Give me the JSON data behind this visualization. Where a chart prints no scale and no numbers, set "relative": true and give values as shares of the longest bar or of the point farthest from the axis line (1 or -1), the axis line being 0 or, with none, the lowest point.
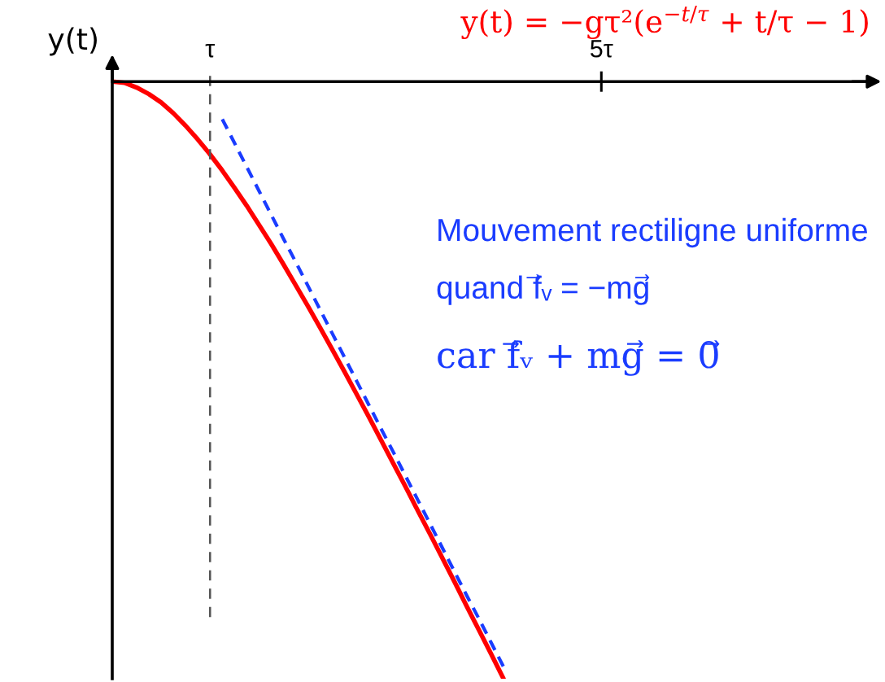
{
  "chart_data": {
    "type": "line",
    "title": "y(t) = −gτ²(e$^{−t/τ}$ + t/τ − 1)",
    "ylabel": "y(t)",
    "relative": true,
    "tick_labels": "x",
    "categories": [
      null,
      null,
      null,
      null,
      null,
      null,
      null,
      null,
      "τ",
      null,
      null,
      null,
      null,
      null,
      null,
      null,
      null,
      null,
      null,
      null,
      null,
      null,
      null,
      null,
      null,
      null,
      null,
      null,
      null,
      null,
      null,
      null,
      null,
      null,
      null,
      null,
      null,
      null,
      null,
      null,
      "5τ",
      null,
      null,
      null,
      null,
      null,
      null,
      null,
      null,
      null,
      null,
      null,
      null,
      null,
      null,
      null,
      null,
      null,
      null,
      null,
      null,
      null,
      null
    ],
    "series": [
      {
        "color": "#ff0000",
        "line_style": "solid",
        "values": [
          0,
          -0.002,
          -0.01,
          -0.021,
          -0.035,
          -0.053,
          -0.074,
          -0.097,
          -0.122,
          -0.149,
          -0.178,
          -0.208,
          -0.24,
          -0.272,
          -0.306,
          -0.341,
          -0.376,
          -0.412,
          -0.449,
          -0.486,
          -0.524,
          -0.562,
          -0.601,
          -0.64,
          -0.679,
          -0.719,
          -0.758,
          -0.798,
          -0.838,
          -0.879,
          -0.919,
          -0.959,
          -1,
          null,
          null,
          null,
          null,
          null,
          null,
          null,
          null,
          null,
          null,
          null,
          null,
          null,
          null,
          null,
          null,
          null,
          null,
          null,
          null,
          null,
          null,
          null,
          null,
          null,
          null,
          null,
          null,
          null,
          null
        ]
      },
      {
        "color": "#1a3cff",
        "line_style": "dashed",
        "values": [
          null,
          null,
          null,
          null,
          null,
          null,
          null,
          null,
          null,
          -0.063,
          -0.103,
          -0.143,
          -0.183,
          -0.223,
          -0.263,
          -0.302,
          -0.342,
          -0.382,
          -0.422,
          -0.462,
          -0.502,
          -0.542,
          -0.582,
          -0.621,
          -0.661,
          -0.701,
          -0.741,
          -0.781,
          -0.821,
          -0.861,
          -0.9,
          -0.94,
          -0.98,
          null,
          null,
          null,
          null,
          null,
          null,
          null,
          null,
          null,
          null,
          null,
          null,
          null,
          null,
          null,
          null,
          null,
          null,
          null,
          null,
          null,
          null,
          null,
          null,
          null,
          null,
          null,
          null,
          null,
          null
        ]
      }
    ],
    "ref_lines": [
      {
        "axis": "x",
        "value": "τ",
        "color": "#555555",
        "line_style": "dashed"
      }
    ],
    "annotations": [
      "Mouvement rectiligne uniforme",
      "quand f⃗ᵥ = −mg⃗",
      "car f⃗ᵥ + mg⃗ = 0⃗"
    ]
  }
}
